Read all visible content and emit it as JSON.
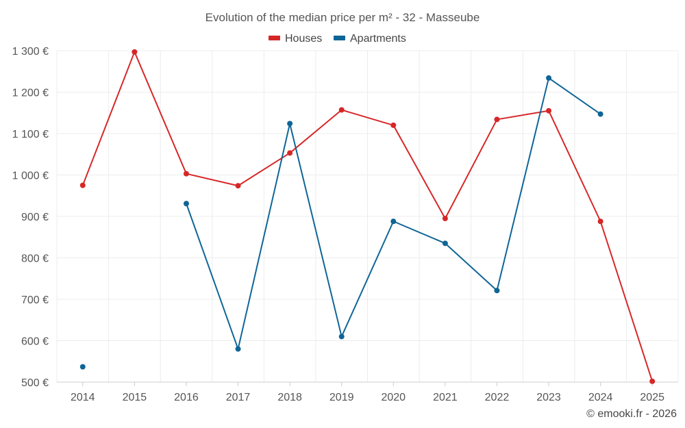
{
  "chart_data": {
    "type": "line",
    "title": "Evolution of the median price per m² - 32 - Masseube",
    "categories": [
      "2014",
      "2015",
      "2016",
      "2017",
      "2018",
      "2019",
      "2020",
      "2021",
      "2022",
      "2023",
      "2024",
      "2025"
    ],
    "ylim": [
      500,
      1300
    ],
    "yticks": [
      500,
      600,
      700,
      800,
      900,
      1000,
      1100,
      1200,
      1300
    ],
    "ytick_labels": [
      "500 €",
      "600 €",
      "700 €",
      "800 €",
      "900 €",
      "1 000 €",
      "1 100 €",
      "1 200 €",
      "1 300 €"
    ],
    "grid": true,
    "legend_position": "top-center",
    "series": [
      {
        "name": "Houses",
        "color": "#d62728",
        "values": [
          975,
          1297,
          1003,
          974,
          1053,
          1157,
          1120,
          895,
          1134,
          1155,
          888,
          502
        ]
      },
      {
        "name": "Apartments",
        "color": "#0e6596",
        "values": [
          537,
          null,
          931,
          580,
          1124,
          610,
          888,
          835,
          721,
          1234,
          1147,
          null
        ]
      }
    ]
  },
  "credit": "© emooki.fr - 2026"
}
